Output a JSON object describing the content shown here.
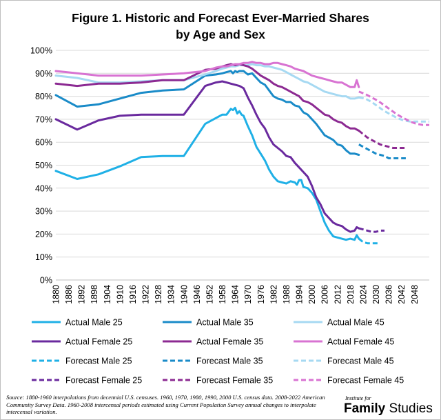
{
  "chart_data": {
    "type": "line",
    "title": [
      "Figure 1. Historic and Forecast Ever-Married Shares",
      "by Age and Sex"
    ],
    "xlabel": "",
    "ylabel": "",
    "xlim": [
      1880,
      2055
    ],
    "ylim": [
      0,
      100
    ],
    "y_ticks": [
      "0%",
      "10%",
      "20%",
      "30%",
      "40%",
      "50%",
      "60%",
      "70%",
      "80%",
      "90%",
      "100%"
    ],
    "x_ticks": [
      "1880",
      "1886",
      "1892",
      "1898",
      "1904",
      "1910",
      "1916",
      "1922",
      "1928",
      "1934",
      "1940",
      "1946",
      "1952",
      "1958",
      "1964",
      "1970",
      "1976",
      "1982",
      "1988",
      "1994",
      "2000",
      "2006",
      "2012",
      "2018",
      "2024",
      "2030",
      "2036",
      "2042",
      "2048"
    ],
    "grid": "horizontal",
    "legend_position": "bottom",
    "series": [
      {
        "name": "Actual Male 25",
        "color": "#1fb0e6",
        "dash": false,
        "x": [
          1880,
          1890,
          1900,
          1910,
          1920,
          1930,
          1940,
          1950,
          1955,
          1958,
          1960,
          1962,
          1963,
          1964,
          1965,
          1966,
          1967,
          1968,
          1970,
          1972,
          1974,
          1976,
          1978,
          1980,
          1982,
          1984,
          1986,
          1988,
          1990,
          1992,
          1993,
          1994,
          1995,
          1996,
          1998,
          2000,
          2002,
          2004,
          2006,
          2008,
          2010,
          2012,
          2014,
          2016,
          2018,
          2020,
          2021,
          2022
        ],
        "y": [
          47.5,
          44,
          46,
          49.5,
          53.5,
          54,
          54,
          68,
          70.5,
          72,
          72,
          74.5,
          74,
          75,
          72.5,
          73.5,
          72,
          71.5,
          67,
          63,
          58,
          55,
          52,
          48,
          45,
          43,
          42.5,
          42,
          43,
          42.5,
          41.5,
          43.5,
          43.5,
          40.5,
          40,
          38,
          35,
          30,
          25,
          21.5,
          19,
          18.5,
          18,
          17.5,
          18,
          17.5,
          19.5,
          18
        ]
      },
      {
        "name": "Actual Male 35",
        "color": "#1a8bc8",
        "dash": false,
        "x": [
          1880,
          1890,
          1900,
          1910,
          1920,
          1930,
          1940,
          1950,
          1955,
          1958,
          1960,
          1962,
          1963,
          1964,
          1965,
          1966,
          1968,
          1970,
          1972,
          1974,
          1976,
          1978,
          1980,
          1982,
          1984,
          1986,
          1988,
          1990,
          1992,
          1994,
          1996,
          1998,
          2000,
          2002,
          2004,
          2006,
          2008,
          2010,
          2012,
          2014,
          2016,
          2018,
          2020,
          2022
        ],
        "y": [
          80.5,
          75.5,
          76.5,
          79,
          81.5,
          82.5,
          83,
          89,
          89.5,
          90,
          90.5,
          91,
          90,
          91,
          90.5,
          91,
          91,
          89.5,
          90,
          88,
          86,
          85,
          82.5,
          80,
          79,
          78.5,
          77.5,
          77.5,
          76,
          75.5,
          73,
          72,
          70,
          68,
          65.5,
          63,
          62,
          61,
          59,
          58.5,
          56.5,
          55,
          55,
          54.5
        ]
      },
      {
        "name": "Actual Male 45",
        "color": "#a6d9f2",
        "dash": false,
        "x": [
          1880,
          1890,
          1900,
          1910,
          1920,
          1930,
          1940,
          1950,
          1955,
          1958,
          1960,
          1962,
          1964,
          1966,
          1968,
          1970,
          1972,
          1974,
          1976,
          1978,
          1980,
          1982,
          1984,
          1986,
          1988,
          1990,
          1992,
          1994,
          1996,
          1998,
          2000,
          2002,
          2004,
          2006,
          2008,
          2010,
          2012,
          2014,
          2016,
          2018,
          2020,
          2022
        ],
        "y": [
          89,
          88,
          86,
          86,
          86.5,
          87,
          87,
          89.5,
          91,
          92,
          92.5,
          93,
          93,
          93.5,
          93.5,
          93.5,
          94,
          93.5,
          93.5,
          93,
          93,
          92.5,
          92,
          91.5,
          90.5,
          89.5,
          88.5,
          87.5,
          86.5,
          86,
          85,
          84,
          83,
          82,
          81.5,
          81,
          80.5,
          80,
          80,
          79,
          79,
          79.5
        ]
      },
      {
        "name": "Actual Female 25",
        "color": "#6a2a9e",
        "dash": false,
        "x": [
          1880,
          1890,
          1900,
          1910,
          1920,
          1930,
          1940,
          1950,
          1955,
          1958,
          1960,
          1962,
          1964,
          1966,
          1968,
          1970,
          1972,
          1974,
          1976,
          1978,
          1980,
          1982,
          1984,
          1986,
          1988,
          1990,
          1992,
          1994,
          1996,
          1998,
          2000,
          2002,
          2004,
          2006,
          2008,
          2010,
          2012,
          2014,
          2016,
          2018,
          2020,
          2021,
          2022
        ],
        "y": [
          70,
          65.5,
          69.5,
          71.5,
          72,
          72,
          72,
          84.5,
          86,
          86.5,
          86,
          85.5,
          85,
          84.5,
          83.5,
          79.5,
          76,
          72,
          68.5,
          66,
          62,
          59,
          57.5,
          56,
          54,
          53.5,
          51,
          49,
          47,
          45,
          41,
          36,
          33,
          29,
          27,
          25,
          24,
          23.5,
          22,
          21,
          21.5,
          23,
          22.5
        ]
      },
      {
        "name": "Actual Female 35",
        "color": "#8c2a92",
        "dash": false,
        "x": [
          1880,
          1890,
          1900,
          1910,
          1920,
          1930,
          1940,
          1950,
          1955,
          1958,
          1960,
          1962,
          1964,
          1966,
          1968,
          1970,
          1972,
          1974,
          1976,
          1978,
          1980,
          1982,
          1984,
          1986,
          1988,
          1990,
          1992,
          1994,
          1996,
          1998,
          2000,
          2002,
          2004,
          2006,
          2008,
          2010,
          2012,
          2014,
          2016,
          2018,
          2020,
          2022
        ],
        "y": [
          85.5,
          84.5,
          85.5,
          85.5,
          86,
          87,
          87,
          91.5,
          92,
          93,
          93.5,
          94,
          93.5,
          94,
          93.5,
          93,
          92,
          90.5,
          89,
          88,
          87,
          85.5,
          84.5,
          84,
          83,
          82,
          81,
          80,
          78,
          77.5,
          76.5,
          75,
          73.5,
          72,
          71.5,
          70,
          69,
          68.5,
          67,
          66,
          66,
          65
        ]
      },
      {
        "name": "Actual Female 45",
        "color": "#d873d2",
        "dash": false,
        "x": [
          1880,
          1890,
          1900,
          1910,
          1920,
          1930,
          1940,
          1950,
          1955,
          1958,
          1960,
          1962,
          1964,
          1966,
          1968,
          1970,
          1972,
          1974,
          1976,
          1978,
          1980,
          1982,
          1984,
          1986,
          1988,
          1990,
          1992,
          1994,
          1996,
          1998,
          2000,
          2002,
          2004,
          2006,
          2008,
          2010,
          2012,
          2014,
          2016,
          2018,
          2020,
          2021,
          2022
        ],
        "y": [
          91,
          90,
          89,
          89,
          89,
          89.5,
          90,
          91,
          92.5,
          93,
          93,
          93.5,
          94,
          94,
          94.5,
          94.5,
          95,
          94.5,
          94.5,
          94,
          94,
          94.5,
          94.5,
          94,
          93.5,
          93,
          92,
          91.5,
          91,
          90,
          89,
          88.5,
          88,
          87.5,
          87,
          86.5,
          86,
          86,
          85,
          84,
          84,
          87,
          84
        ]
      },
      {
        "name": "Forecast Male 25",
        "color": "#1fb0e6",
        "dash": true,
        "x": [
          2022,
          2024,
          2026,
          2028,
          2030,
          2032
        ],
        "y": [
          18,
          16.5,
          16,
          16,
          16,
          16
        ]
      },
      {
        "name": "Forecast Male 35",
        "color": "#1a8bc8",
        "dash": true,
        "x": [
          2022,
          2024,
          2026,
          2028,
          2030,
          2032,
          2034,
          2036,
          2038,
          2040,
          2042,
          2044
        ],
        "y": [
          59,
          58,
          57,
          56,
          55,
          54.5,
          54,
          53,
          53,
          53,
          53,
          53
        ]
      },
      {
        "name": "Forecast Male 45",
        "color": "#a6d9f2",
        "dash": true,
        "x": [
          2022,
          2025,
          2028,
          2031,
          2034,
          2037,
          2040,
          2043,
          2046,
          2049,
          2052,
          2055
        ],
        "y": [
          79.5,
          79,
          77.5,
          75.5,
          73.5,
          72,
          70.5,
          69.5,
          69,
          69,
          69,
          69
        ]
      },
      {
        "name": "Forecast Female 25",
        "color": "#6a2a9e",
        "dash": true,
        "x": [
          2022,
          2024,
          2026,
          2028,
          2030,
          2032,
          2034
        ],
        "y": [
          22.5,
          22,
          21.5,
          21,
          21,
          21.5,
          21.5
        ]
      },
      {
        "name": "Forecast Female 35",
        "color": "#8c2a92",
        "dash": true,
        "x": [
          2022,
          2024,
          2026,
          2028,
          2030,
          2032,
          2034,
          2036,
          2038,
          2040,
          2042,
          2044
        ],
        "y": [
          65,
          63.5,
          62,
          61,
          60,
          59,
          58.5,
          58,
          57.5,
          57.5,
          57.5,
          57.5
        ]
      },
      {
        "name": "Forecast Female 45",
        "color": "#d873d2",
        "dash": true,
        "x": [
          2022,
          2025,
          2028,
          2031,
          2034,
          2037,
          2040,
          2043,
          2046,
          2049,
          2052,
          2055
        ],
        "y": [
          82,
          81,
          79.5,
          78,
          76,
          74,
          72,
          70.5,
          69,
          68,
          67.5,
          67.5
        ]
      }
    ]
  },
  "source_note": "Source: 1880-1960 interpolations from decennial U.S. censuses. 1960, 1970, 1980, 1990, 2000 U.S. census data. 2008-2022 American Community Survey Data. 1960-2008 intercensal periods estimated using Current Population Survey annual changes to interpolate intercensal variation.",
  "logo": {
    "top": "Institute for",
    "bold": "Family",
    "rest": " Studies"
  }
}
